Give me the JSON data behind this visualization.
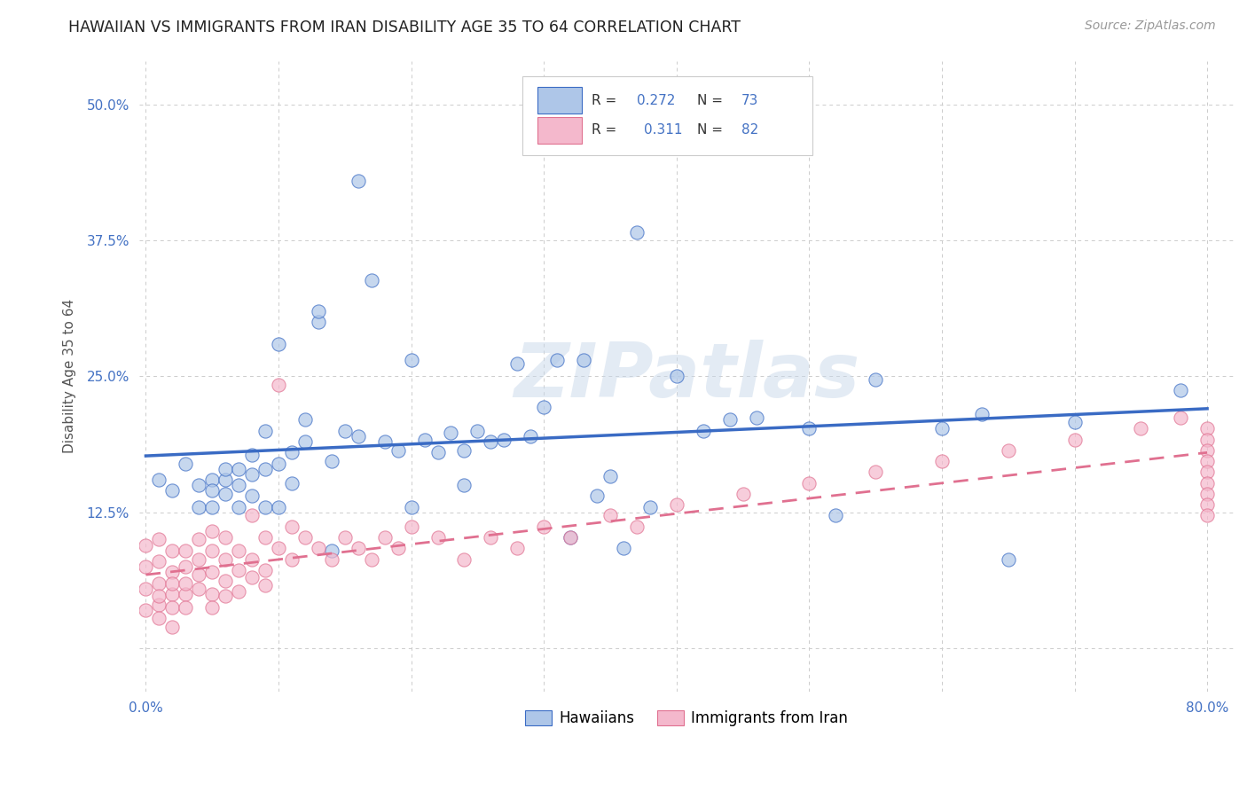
{
  "title": "HAWAIIAN VS IMMIGRANTS FROM IRAN DISABILITY AGE 35 TO 64 CORRELATION CHART",
  "source": "Source: ZipAtlas.com",
  "ylabel": "Disability Age 35 to 64",
  "xlim": [
    -0.005,
    0.82
  ],
  "ylim": [
    -0.04,
    0.54
  ],
  "yticks": [
    0.0,
    0.125,
    0.25,
    0.375,
    0.5
  ],
  "ytick_labels": [
    "",
    "12.5%",
    "25.0%",
    "37.5%",
    "50.0%"
  ],
  "xticks": [
    0.0,
    0.1,
    0.2,
    0.3,
    0.4,
    0.5,
    0.6,
    0.7,
    0.8
  ],
  "xtick_labels": [
    "0.0%",
    "",
    "",
    "",
    "",
    "",
    "",
    "",
    "80.0%"
  ],
  "hawaiian_color": "#aec6e8",
  "iran_color": "#f4b8cc",
  "trend_hawaiian_color": "#3a6bc4",
  "trend_iran_color": "#e07090",
  "background_color": "#ffffff",
  "grid_color": "#cccccc",
  "hawaiian_x": [
    0.01,
    0.02,
    0.03,
    0.04,
    0.04,
    0.05,
    0.05,
    0.05,
    0.06,
    0.06,
    0.06,
    0.07,
    0.07,
    0.07,
    0.08,
    0.08,
    0.08,
    0.09,
    0.09,
    0.09,
    0.1,
    0.1,
    0.1,
    0.11,
    0.11,
    0.12,
    0.12,
    0.13,
    0.13,
    0.14,
    0.14,
    0.15,
    0.16,
    0.16,
    0.17,
    0.18,
    0.19,
    0.2,
    0.2,
    0.21,
    0.22,
    0.23,
    0.24,
    0.24,
    0.25,
    0.26,
    0.27,
    0.28,
    0.29,
    0.3,
    0.31,
    0.32,
    0.33,
    0.34,
    0.35,
    0.36,
    0.37,
    0.38,
    0.4,
    0.42,
    0.44,
    0.46,
    0.5,
    0.52,
    0.55,
    0.6,
    0.63,
    0.65,
    0.7,
    0.78
  ],
  "hawaiian_y": [
    0.155,
    0.145,
    0.17,
    0.15,
    0.13,
    0.155,
    0.145,
    0.13,
    0.155,
    0.165,
    0.142,
    0.165,
    0.15,
    0.13,
    0.16,
    0.178,
    0.14,
    0.165,
    0.2,
    0.13,
    0.17,
    0.28,
    0.13,
    0.18,
    0.152,
    0.21,
    0.19,
    0.3,
    0.31,
    0.172,
    0.09,
    0.2,
    0.195,
    0.43,
    0.338,
    0.19,
    0.182,
    0.265,
    0.13,
    0.192,
    0.18,
    0.198,
    0.182,
    0.15,
    0.2,
    0.19,
    0.192,
    0.262,
    0.195,
    0.222,
    0.265,
    0.102,
    0.265,
    0.14,
    0.158,
    0.092,
    0.382,
    0.13,
    0.25,
    0.2,
    0.21,
    0.212,
    0.202,
    0.122,
    0.247,
    0.202,
    0.215,
    0.082,
    0.208,
    0.237
  ],
  "iran_x": [
    0.0,
    0.0,
    0.0,
    0.0,
    0.01,
    0.01,
    0.01,
    0.01,
    0.01,
    0.01,
    0.02,
    0.02,
    0.02,
    0.02,
    0.02,
    0.02,
    0.03,
    0.03,
    0.03,
    0.03,
    0.03,
    0.04,
    0.04,
    0.04,
    0.04,
    0.05,
    0.05,
    0.05,
    0.05,
    0.05,
    0.06,
    0.06,
    0.06,
    0.06,
    0.07,
    0.07,
    0.07,
    0.08,
    0.08,
    0.08,
    0.09,
    0.09,
    0.09,
    0.1,
    0.1,
    0.11,
    0.11,
    0.12,
    0.13,
    0.14,
    0.15,
    0.16,
    0.17,
    0.18,
    0.19,
    0.2,
    0.22,
    0.24,
    0.26,
    0.28,
    0.3,
    0.32,
    0.35,
    0.37,
    0.4,
    0.45,
    0.5,
    0.55,
    0.6,
    0.65,
    0.7,
    0.75,
    0.78,
    0.8,
    0.8,
    0.8,
    0.8,
    0.8,
    0.8,
    0.8,
    0.8,
    0.8
  ],
  "iran_y": [
    0.035,
    0.055,
    0.075,
    0.095,
    0.04,
    0.06,
    0.08,
    0.028,
    0.048,
    0.1,
    0.05,
    0.07,
    0.09,
    0.038,
    0.06,
    0.02,
    0.05,
    0.075,
    0.06,
    0.09,
    0.038,
    0.068,
    0.082,
    0.1,
    0.055,
    0.05,
    0.07,
    0.09,
    0.108,
    0.038,
    0.062,
    0.082,
    0.102,
    0.048,
    0.072,
    0.09,
    0.052,
    0.082,
    0.122,
    0.065,
    0.072,
    0.102,
    0.058,
    0.092,
    0.242,
    0.082,
    0.112,
    0.102,
    0.092,
    0.082,
    0.102,
    0.092,
    0.082,
    0.102,
    0.092,
    0.112,
    0.102,
    0.082,
    0.102,
    0.092,
    0.112,
    0.102,
    0.122,
    0.112,
    0.132,
    0.142,
    0.152,
    0.162,
    0.172,
    0.182,
    0.192,
    0.202,
    0.212,
    0.202,
    0.192,
    0.182,
    0.172,
    0.162,
    0.152,
    0.142,
    0.132,
    0.122
  ]
}
